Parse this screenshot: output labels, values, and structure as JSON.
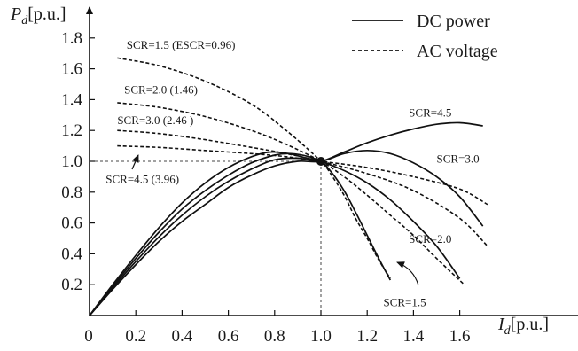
{
  "chart_data": {
    "type": "line",
    "xlabel": {
      "main": "I",
      "sub": "d",
      "unit": "[p.u.]"
    },
    "ylabel": {
      "main": "P",
      "sub": "d",
      "unit": "[p.u.]"
    },
    "xlim": [
      0,
      1.75
    ],
    "ylim": [
      0,
      1.93
    ],
    "x_ticks": [
      "0",
      "0.2",
      "0.4",
      "0.6",
      "0.8",
      "1.0",
      "1.2",
      "1.4",
      "1.6"
    ],
    "x_tick_values": [
      0,
      0.2,
      0.4,
      0.6,
      0.8,
      1.0,
      1.2,
      1.4,
      1.6
    ],
    "y_ticks": [
      "0.2",
      "0.4",
      "0.6",
      "0.8",
      "1.0",
      "1.2",
      "1.4",
      "1.6",
      "1.8"
    ],
    "y_tick_values": [
      0.2,
      0.4,
      0.6,
      0.8,
      1.0,
      1.2,
      1.4,
      1.6,
      1.8
    ],
    "grid": false,
    "legend_position": "top-right",
    "legend": [
      {
        "label": "DC power",
        "style": "solid"
      },
      {
        "label": "AC voltage",
        "style": "dashed"
      }
    ],
    "operating_point": {
      "x": 1.0,
      "y": 1.0
    },
    "reference_lines": {
      "x": 1.0,
      "y": 1.0,
      "style": "dashed"
    },
    "series": [
      {
        "kind": "dc_power",
        "style": "solid",
        "scr": "4.5",
        "points": [
          [
            0,
            0
          ],
          [
            0.1,
            0.17
          ],
          [
            0.2,
            0.33
          ],
          [
            0.3,
            0.48
          ],
          [
            0.4,
            0.61
          ],
          [
            0.5,
            0.72
          ],
          [
            0.6,
            0.83
          ],
          [
            0.7,
            0.91
          ],
          [
            0.8,
            0.97
          ],
          [
            0.9,
            1.0
          ],
          [
            1.0,
            1.0
          ],
          [
            1.1,
            1.06
          ],
          [
            1.2,
            1.12
          ],
          [
            1.3,
            1.17
          ],
          [
            1.4,
            1.21
          ],
          [
            1.5,
            1.24
          ],
          [
            1.6,
            1.25
          ],
          [
            1.7,
            1.23
          ]
        ]
      },
      {
        "kind": "dc_power",
        "style": "solid",
        "scr": "3.0",
        "points": [
          [
            0,
            0
          ],
          [
            0.1,
            0.18
          ],
          [
            0.2,
            0.35
          ],
          [
            0.3,
            0.51
          ],
          [
            0.4,
            0.65
          ],
          [
            0.5,
            0.77
          ],
          [
            0.6,
            0.87
          ],
          [
            0.7,
            0.95
          ],
          [
            0.8,
            1.01
          ],
          [
            0.9,
            1.02
          ],
          [
            1.0,
            1.0
          ],
          [
            1.1,
            1.05
          ],
          [
            1.2,
            1.07
          ],
          [
            1.3,
            1.05
          ],
          [
            1.4,
            0.99
          ],
          [
            1.5,
            0.9
          ],
          [
            1.6,
            0.77
          ],
          [
            1.7,
            0.58
          ]
        ]
      },
      {
        "kind": "dc_power",
        "style": "solid",
        "scr": "2.0",
        "points": [
          [
            0,
            0
          ],
          [
            0.1,
            0.19
          ],
          [
            0.2,
            0.37
          ],
          [
            0.3,
            0.54
          ],
          [
            0.4,
            0.69
          ],
          [
            0.5,
            0.81
          ],
          [
            0.6,
            0.91
          ],
          [
            0.7,
            0.99
          ],
          [
            0.8,
            1.04
          ],
          [
            0.87,
            1.05
          ],
          [
            0.95,
            1.03
          ],
          [
            1.0,
            1.0
          ],
          [
            1.1,
            0.94
          ],
          [
            1.2,
            0.86
          ],
          [
            1.3,
            0.75
          ],
          [
            1.4,
            0.61
          ],
          [
            1.5,
            0.45
          ],
          [
            1.6,
            0.24
          ]
        ]
      },
      {
        "kind": "dc_power",
        "style": "solid",
        "scr": "1.5",
        "points": [
          [
            0,
            0
          ],
          [
            0.1,
            0.2
          ],
          [
            0.2,
            0.39
          ],
          [
            0.3,
            0.57
          ],
          [
            0.4,
            0.73
          ],
          [
            0.5,
            0.86
          ],
          [
            0.6,
            0.96
          ],
          [
            0.7,
            1.03
          ],
          [
            0.78,
            1.06
          ],
          [
            0.86,
            1.05
          ],
          [
            0.94,
            1.02
          ],
          [
            1.0,
            1.0
          ],
          [
            1.05,
            0.92
          ],
          [
            1.1,
            0.81
          ],
          [
            1.15,
            0.67
          ],
          [
            1.2,
            0.52
          ],
          [
            1.25,
            0.37
          ],
          [
            1.3,
            0.23
          ]
        ]
      },
      {
        "kind": "ac_voltage",
        "style": "dashed",
        "scr": "4.5 (3.96)",
        "points": [
          [
            0.12,
            1.1
          ],
          [
            0.3,
            1.09
          ],
          [
            0.5,
            1.07
          ],
          [
            0.7,
            1.05
          ],
          [
            0.85,
            1.03
          ],
          [
            1.0,
            1.0
          ],
          [
            1.2,
            0.96
          ],
          [
            1.4,
            0.9
          ],
          [
            1.6,
            0.82
          ],
          [
            1.72,
            0.72
          ]
        ]
      },
      {
        "kind": "ac_voltage",
        "style": "dashed",
        "scr": "3.0 (2.46)",
        "points": [
          [
            0.12,
            1.2
          ],
          [
            0.3,
            1.18
          ],
          [
            0.5,
            1.14
          ],
          [
            0.7,
            1.09
          ],
          [
            0.85,
            1.05
          ],
          [
            1.0,
            1.0
          ],
          [
            1.2,
            0.92
          ],
          [
            1.4,
            0.81
          ],
          [
            1.6,
            0.63
          ],
          [
            1.72,
            0.45
          ]
        ]
      },
      {
        "kind": "ac_voltage",
        "style": "dashed",
        "scr": "2.0 (1.46)",
        "points": [
          [
            0.12,
            1.38
          ],
          [
            0.3,
            1.35
          ],
          [
            0.5,
            1.29
          ],
          [
            0.7,
            1.2
          ],
          [
            0.85,
            1.11
          ],
          [
            1.0,
            1.0
          ],
          [
            1.1,
            0.9
          ],
          [
            1.2,
            0.78
          ],
          [
            1.3,
            0.65
          ],
          [
            1.4,
            0.52
          ],
          [
            1.5,
            0.37
          ],
          [
            1.62,
            0.2
          ]
        ]
      },
      {
        "kind": "ac_voltage",
        "style": "dashed",
        "scr": "1.5 (ESCR=0.96)",
        "points": [
          [
            0.12,
            1.67
          ],
          [
            0.3,
            1.62
          ],
          [
            0.5,
            1.52
          ],
          [
            0.7,
            1.37
          ],
          [
            0.85,
            1.2
          ],
          [
            1.0,
            1.0
          ],
          [
            1.05,
            0.9
          ],
          [
            1.1,
            0.78
          ],
          [
            1.15,
            0.63
          ],
          [
            1.2,
            0.5
          ],
          [
            1.25,
            0.36
          ],
          [
            1.3,
            0.24
          ]
        ]
      }
    ],
    "annotations": [
      {
        "text": "SCR=1.5 (ESCR=0.96)",
        "x": 0.16,
        "y": 1.73
      },
      {
        "text": "SCR=2.0 (1.46)",
        "x": 0.15,
        "y": 1.44
      },
      {
        "text": "SCR=3.0 (2.46 )",
        "x": 0.12,
        "y": 1.24
      },
      {
        "text": "SCR=4.5 (3.96)",
        "x": 0.07,
        "y": 0.86
      },
      {
        "text": "SCR=4.5",
        "x": 1.38,
        "y": 1.29
      },
      {
        "text": "SCR=3.0",
        "x": 1.5,
        "y": 0.99
      },
      {
        "text": "SCR=2.0",
        "x": 1.38,
        "y": 0.47
      },
      {
        "text": "SCR=1.5",
        "x": 1.27,
        "y": 0.06
      }
    ]
  }
}
